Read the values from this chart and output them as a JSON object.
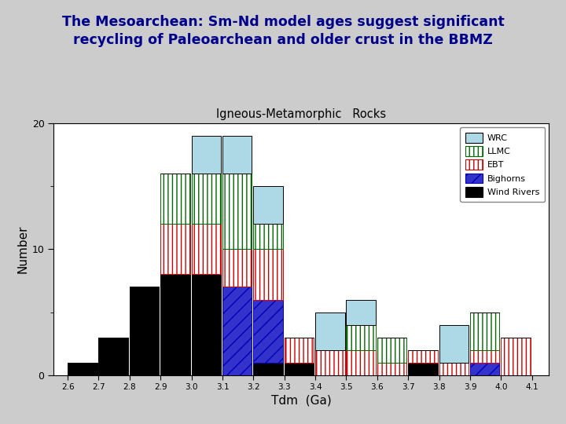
{
  "title": "The Mesoarchean: Sm-Nd model ages suggest significant\nrecycling of Paleoarchean and older crust in the BBMZ",
  "chart_title": "Igneous-Metamorphic   Rocks",
  "xlabel": "Tdm  (Ga)",
  "ylabel": "Number",
  "background_color": "#cccccc",
  "plot_bg_color": "#ffffff",
  "bins": [
    2.6,
    2.7,
    2.8,
    2.9,
    3.0,
    3.1,
    3.2,
    3.3,
    3.4,
    3.5,
    3.6,
    3.7,
    3.8,
    3.9,
    4.0,
    4.1
  ],
  "series": {
    "Wind Rivers": [
      1,
      3,
      7,
      8,
      8,
      0,
      1,
      1,
      0,
      0,
      0,
      1,
      0,
      0,
      0
    ],
    "Bighorns": [
      0,
      0,
      0,
      0,
      0,
      7,
      5,
      0,
      0,
      0,
      0,
      0,
      0,
      1,
      0
    ],
    "EBT": [
      0,
      0,
      0,
      4,
      4,
      3,
      4,
      2,
      2,
      2,
      1,
      1,
      1,
      1,
      3
    ],
    "LLMC": [
      0,
      0,
      0,
      4,
      4,
      6,
      2,
      0,
      0,
      2,
      2,
      0,
      0,
      3,
      0
    ],
    "WRC": [
      0,
      0,
      0,
      0,
      3,
      3,
      3,
      0,
      3,
      2,
      0,
      0,
      3,
      0,
      0
    ]
  }
}
